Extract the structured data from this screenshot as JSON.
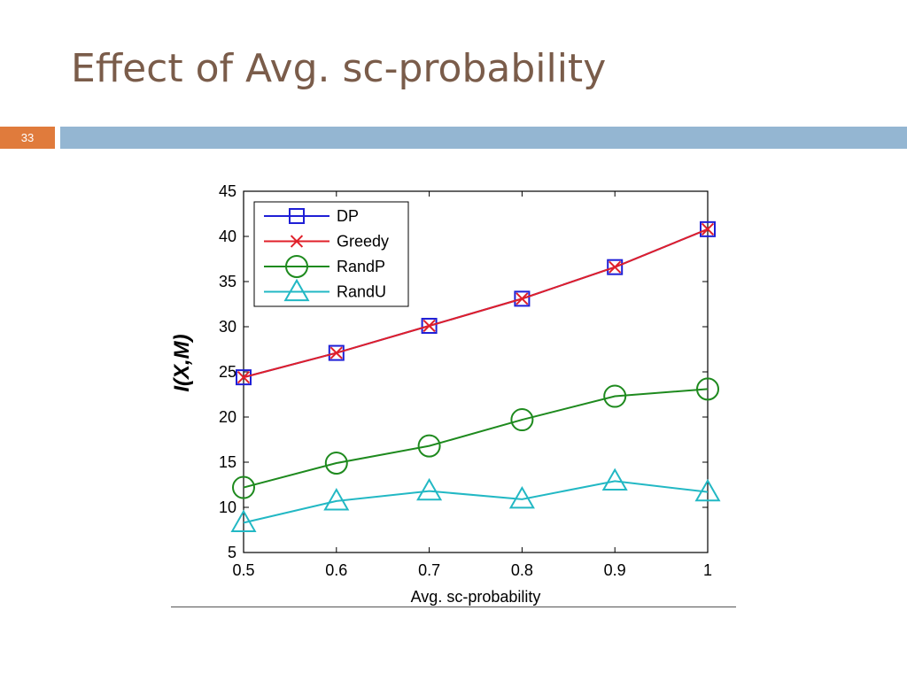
{
  "slide": {
    "title": "Effect of Avg. sc-probability",
    "number": "33"
  },
  "colors": {
    "title": "#7a5c4a",
    "number_box": "#e07b3c",
    "header_bar": "#94b6d2"
  },
  "chart_data": {
    "type": "line",
    "title": "",
    "xlabel": "Avg. sc-probability",
    "ylabel": "I(X,M)",
    "xlim": [
      0.5,
      1.0
    ],
    "ylim": [
      5,
      45
    ],
    "x_ticks": [
      "0.5",
      "0.6",
      "0.7",
      "0.8",
      "0.9",
      "1"
    ],
    "y_ticks": [
      "5",
      "10",
      "15",
      "20",
      "25",
      "30",
      "35",
      "40",
      "45"
    ],
    "x": [
      0.5,
      0.6,
      0.7,
      0.8,
      0.9,
      1.0
    ],
    "legend_position": "top-left",
    "grid": false,
    "series": [
      {
        "name": "DP",
        "color": "#1f1fd6",
        "marker": "square",
        "values": [
          24.4,
          27.1,
          30.1,
          33.1,
          36.6,
          40.8
        ]
      },
      {
        "name": "Greedy",
        "color": "#e0202a",
        "marker": "x",
        "values": [
          24.4,
          27.1,
          30.1,
          33.1,
          36.6,
          40.8
        ]
      },
      {
        "name": "RandP",
        "color": "#1e8a1e",
        "marker": "circle",
        "values": [
          12.2,
          14.9,
          16.8,
          19.7,
          22.3,
          23.1
        ]
      },
      {
        "name": "RandU",
        "color": "#22b8c4",
        "marker": "triangle",
        "values": [
          8.3,
          10.7,
          11.8,
          10.9,
          12.9,
          11.7
        ]
      }
    ]
  }
}
